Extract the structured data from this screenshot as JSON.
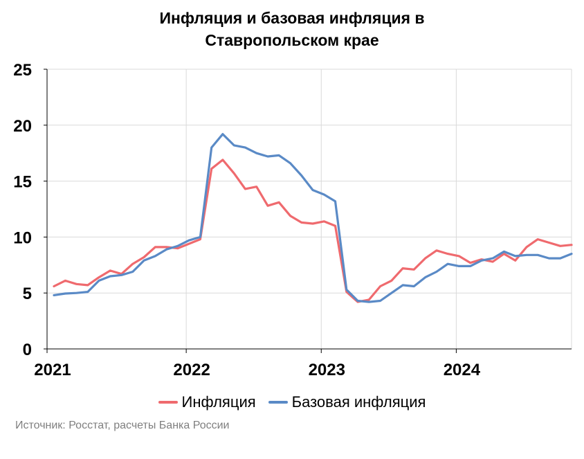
{
  "chart_data": {
    "type": "line",
    "title": [
      "Инфляция и базовая инфляция в",
      "Ставропольском крае"
    ],
    "xlabel": "",
    "ylabel": "",
    "ylim": [
      0,
      25
    ],
    "yticks": [
      "0",
      "5",
      "10",
      "15",
      "20",
      "25"
    ],
    "xticks": [
      "2021",
      "2022",
      "2023",
      "2024"
    ],
    "x": [
      "2021-01",
      "2021-02",
      "2021-03",
      "2021-04",
      "2021-05",
      "2021-06",
      "2021-07",
      "2021-08",
      "2021-09",
      "2021-10",
      "2021-11",
      "2021-12",
      "2022-01",
      "2022-02",
      "2022-03",
      "2022-04",
      "2022-05",
      "2022-06",
      "2022-07",
      "2022-08",
      "2022-09",
      "2022-10",
      "2022-11",
      "2022-12",
      "2023-01",
      "2023-02",
      "2023-03",
      "2023-04",
      "2023-05",
      "2023-06",
      "2023-07",
      "2023-08",
      "2023-09",
      "2023-10",
      "2023-11",
      "2023-12",
      "2024-01",
      "2024-02",
      "2024-03",
      "2024-04",
      "2024-05",
      "2024-06",
      "2024-07",
      "2024-08",
      "2024-09",
      "2024-10",
      "2024-11"
    ],
    "grid": "vertical lines at year starts",
    "legend": "bottom",
    "series": [
      {
        "name": "Инфляция",
        "color": "#ef6a6e",
        "values": [
          5.6,
          6.1,
          5.8,
          5.7,
          6.4,
          7.0,
          6.7,
          7.6,
          8.2,
          9.1,
          9.1,
          9.0,
          9.4,
          9.8,
          16.1,
          16.9,
          15.7,
          14.3,
          14.5,
          12.8,
          13.1,
          11.9,
          11.3,
          11.2,
          11.4,
          11.0,
          5.1,
          4.2,
          4.4,
          5.6,
          6.1,
          7.2,
          7.1,
          8.1,
          8.8,
          8.5,
          8.3,
          7.7,
          8.0,
          7.8,
          8.5,
          7.9,
          9.1,
          9.8,
          9.5,
          9.2,
          9.3
        ]
      },
      {
        "name": "Базовая инфляция",
        "color": "#5a8ac6",
        "values": [
          4.8,
          4.95,
          5.0,
          5.1,
          6.1,
          6.5,
          6.6,
          6.9,
          7.9,
          8.3,
          8.9,
          9.2,
          9.7,
          10.0,
          18.0,
          19.2,
          18.2,
          18.0,
          17.5,
          17.2,
          17.3,
          16.6,
          15.5,
          14.2,
          13.8,
          13.2,
          5.3,
          4.3,
          4.2,
          4.3,
          5.0,
          5.7,
          5.6,
          6.4,
          6.9,
          7.6,
          7.4,
          7.4,
          7.9,
          8.1,
          8.7,
          8.3,
          8.4,
          8.4,
          8.1,
          8.1,
          8.5
        ]
      }
    ]
  },
  "source": "Источник: Росстат, расчеты Банка России"
}
